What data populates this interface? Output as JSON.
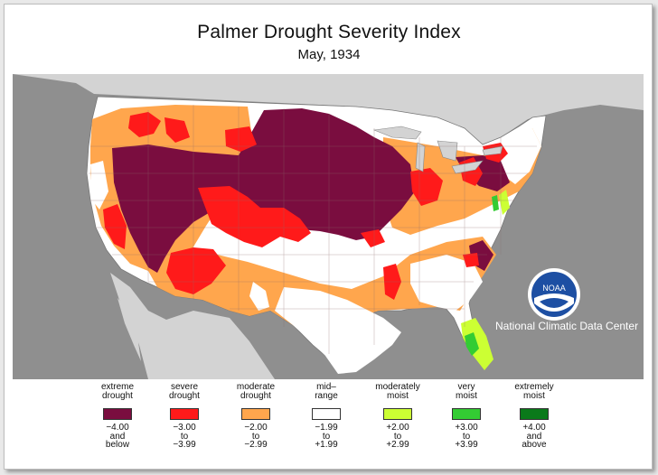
{
  "title": "Palmer Drought Severity Index",
  "subtitle": "May, 1934",
  "map": {
    "ocean_color": "#8f8f8f",
    "land_outside_color": "#d3d3d3",
    "logo_text": "NOAA",
    "center_label": "National Climatic Data Center"
  },
  "legend": [
    {
      "line1": "extreme",
      "line2": "drought",
      "color": "#7a0d3f",
      "r1": "−4.00",
      "r2": "and",
      "r3": "below"
    },
    {
      "line1": "severe",
      "line2": "drought",
      "color": "#ff1a1a",
      "r1": "−3.00",
      "r2": "to",
      "r3": "−3.99"
    },
    {
      "line1": "moderate",
      "line2": "drought",
      "color": "#ffa64d",
      "r1": "−2.00",
      "r2": "to",
      "r3": "−2.99"
    },
    {
      "line1": "mid–",
      "line2": "range",
      "color": "#ffffff",
      "r1": "−1.99",
      "r2": "to",
      "r3": "+1.99"
    },
    {
      "line1": "moderately",
      "line2": "moist",
      "color": "#ccff33",
      "r1": "+2.00",
      "r2": "to",
      "r3": "+2.99"
    },
    {
      "line1": "very",
      "line2": "moist",
      "color": "#33cc33",
      "r1": "+3.00",
      "r2": "to",
      "r3": "+3.99"
    },
    {
      "line1": "extremely",
      "line2": "moist",
      "color": "#0a7a1a",
      "r1": "+4.00",
      "r2": "and",
      "r3": "above"
    }
  ]
}
